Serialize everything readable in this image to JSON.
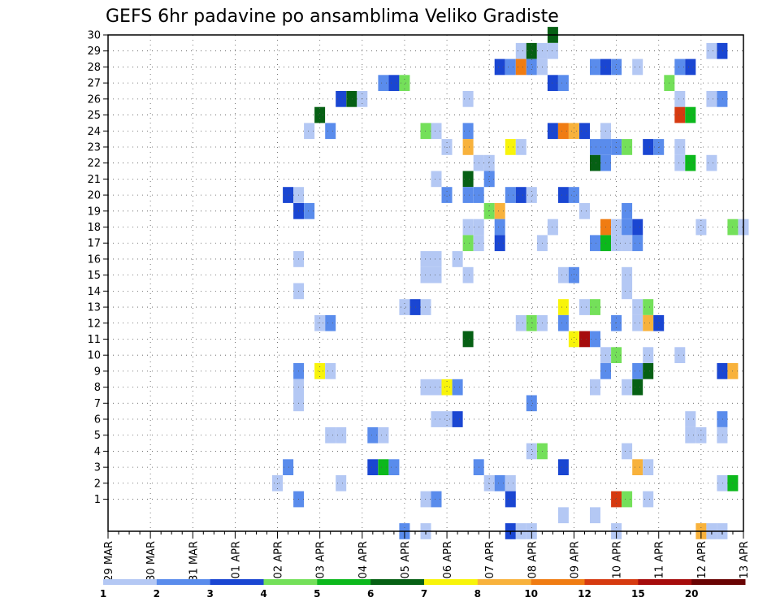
{
  "chart_data": {
    "type": "heatmap",
    "title": "GEFS 6hr padavine po ansamblima Veliko Gradiste",
    "x_tick_labels": [
      "29 MAR",
      "30 MAR",
      "31 MAR",
      "01 APR",
      "02 APR",
      "03 APR",
      "04 APR",
      "05 APR",
      "06 APR",
      "07 APR",
      "08 APR",
      "09 APR",
      "10 APR",
      "11 APR",
      "12 APR",
      "13 APR"
    ],
    "y_tick_labels": [
      "1",
      "2",
      "3",
      "4",
      "5",
      "6",
      "7",
      "8",
      "9",
      "10",
      "11",
      "12",
      "13",
      "14",
      "15",
      "16",
      "17",
      "18",
      "19",
      "20",
      "21",
      "22",
      "23",
      "24",
      "25",
      "26",
      "27",
      "28",
      "29",
      "30"
    ],
    "xlim": [
      0,
      60
    ],
    "ylim": [
      0,
      30
    ],
    "steps_per_day": 4,
    "grid": true,
    "legend_position": "bottom",
    "colorbar": {
      "levels": [
        "1",
        "2",
        "3",
        "4",
        "5",
        "6",
        "7",
        "8",
        "10",
        "12",
        "15",
        "20"
      ],
      "colors": [
        "#b4c8f4",
        "#5a8cec",
        "#1a46d2",
        "#74e05a",
        "#0cb81c",
        "#066014",
        "#f8f40a",
        "#f8b23c",
        "#f07c12",
        "#d63a10",
        "#a60c0c",
        "#6a0404"
      ]
    },
    "cells": [
      [
        39,
        29,
        0
      ],
      [
        40,
        29,
        5
      ],
      [
        41,
        29,
        0
      ],
      [
        42,
        29,
        0
      ],
      [
        42,
        30,
        5
      ],
      [
        57,
        29,
        0
      ],
      [
        58,
        29,
        2
      ],
      [
        37,
        28,
        2
      ],
      [
        38,
        28,
        1
      ],
      [
        39,
        28,
        8
      ],
      [
        40,
        28,
        1
      ],
      [
        41,
        28,
        0
      ],
      [
        46,
        28,
        1
      ],
      [
        47,
        28,
        2
      ],
      [
        48,
        28,
        1
      ],
      [
        50,
        28,
        0
      ],
      [
        54,
        28,
        1
      ],
      [
        55,
        28,
        2
      ],
      [
        26,
        27,
        1
      ],
      [
        27,
        27,
        2
      ],
      [
        28,
        27,
        3
      ],
      [
        42,
        27,
        2
      ],
      [
        43,
        27,
        1
      ],
      [
        53,
        27,
        3
      ],
      [
        22,
        26,
        2
      ],
      [
        23,
        26,
        5
      ],
      [
        24,
        26,
        0
      ],
      [
        34,
        26,
        0
      ],
      [
        54,
        26,
        0
      ],
      [
        57,
        26,
        0
      ],
      [
        58,
        26,
        1
      ],
      [
        20,
        25,
        5
      ],
      [
        54,
        25,
        9
      ],
      [
        55,
        25,
        4
      ],
      [
        19,
        24,
        0
      ],
      [
        21,
        24,
        1
      ],
      [
        30,
        24,
        3
      ],
      [
        31,
        24,
        0
      ],
      [
        34,
        24,
        1
      ],
      [
        42,
        24,
        2
      ],
      [
        43,
        24,
        8
      ],
      [
        44,
        24,
        7
      ],
      [
        45,
        24,
        2
      ],
      [
        47,
        24,
        0
      ],
      [
        32,
        23,
        0
      ],
      [
        34,
        23,
        7
      ],
      [
        38,
        23,
        6
      ],
      [
        39,
        23,
        0
      ],
      [
        46,
        23,
        1
      ],
      [
        47,
        23,
        1
      ],
      [
        48,
        23,
        1
      ],
      [
        49,
        23,
        3
      ],
      [
        51,
        23,
        2
      ],
      [
        52,
        23,
        1
      ],
      [
        54,
        23,
        0
      ],
      [
        35,
        22,
        0
      ],
      [
        36,
        22,
        0
      ],
      [
        46,
        22,
        5
      ],
      [
        47,
        22,
        1
      ],
      [
        54,
        22,
        0
      ],
      [
        55,
        22,
        4
      ],
      [
        57,
        22,
        0
      ],
      [
        31,
        21,
        0
      ],
      [
        34,
        21,
        5
      ],
      [
        36,
        21,
        1
      ],
      [
        17,
        20,
        2
      ],
      [
        18,
        20,
        0
      ],
      [
        32,
        20,
        1
      ],
      [
        34,
        20,
        1
      ],
      [
        35,
        20,
        1
      ],
      [
        38,
        20,
        1
      ],
      [
        39,
        20,
        2
      ],
      [
        40,
        20,
        0
      ],
      [
        43,
        20,
        2
      ],
      [
        44,
        20,
        1
      ],
      [
        18,
        19,
        2
      ],
      [
        19,
        19,
        1
      ],
      [
        36,
        19,
        3
      ],
      [
        37,
        19,
        7
      ],
      [
        45,
        19,
        0
      ],
      [
        49,
        19,
        1
      ],
      [
        34,
        18,
        0
      ],
      [
        35,
        18,
        0
      ],
      [
        37,
        18,
        1
      ],
      [
        42,
        18,
        0
      ],
      [
        47,
        18,
        8
      ],
      [
        48,
        18,
        0
      ],
      [
        49,
        18,
        1
      ],
      [
        50,
        18,
        2
      ],
      [
        56,
        18,
        0
      ],
      [
        59,
        18,
        3
      ],
      [
        60,
        18,
        0
      ],
      [
        34,
        17,
        3
      ],
      [
        35,
        17,
        0
      ],
      [
        37,
        17,
        2
      ],
      [
        41,
        17,
        0
      ],
      [
        46,
        17,
        1
      ],
      [
        47,
        17,
        4
      ],
      [
        48,
        17,
        0
      ],
      [
        49,
        17,
        0
      ],
      [
        50,
        17,
        1
      ],
      [
        18,
        16,
        0
      ],
      [
        30,
        16,
        0
      ],
      [
        31,
        16,
        0
      ],
      [
        33,
        16,
        0
      ],
      [
        30,
        15,
        0
      ],
      [
        31,
        15,
        0
      ],
      [
        34,
        15,
        0
      ],
      [
        43,
        15,
        0
      ],
      [
        44,
        15,
        1
      ],
      [
        49,
        15,
        0
      ],
      [
        18,
        14,
        0
      ],
      [
        49,
        14,
        0
      ],
      [
        28,
        13,
        0
      ],
      [
        29,
        13,
        2
      ],
      [
        30,
        13,
        0
      ],
      [
        43,
        13,
        6
      ],
      [
        45,
        13,
        0
      ],
      [
        46,
        13,
        3
      ],
      [
        50,
        13,
        0
      ],
      [
        51,
        13,
        3
      ],
      [
        20,
        12,
        0
      ],
      [
        21,
        12,
        1
      ],
      [
        39,
        12,
        0
      ],
      [
        40,
        12,
        3
      ],
      [
        41,
        12,
        0
      ],
      [
        43,
        12,
        1
      ],
      [
        48,
        12,
        1
      ],
      [
        50,
        12,
        0
      ],
      [
        51,
        12,
        7
      ],
      [
        52,
        12,
        2
      ],
      [
        34,
        11,
        5
      ],
      [
        44,
        11,
        6
      ],
      [
        45,
        11,
        10
      ],
      [
        46,
        11,
        1
      ],
      [
        47,
        10,
        0
      ],
      [
        48,
        10,
        3
      ],
      [
        51,
        10,
        0
      ],
      [
        54,
        10,
        0
      ],
      [
        18,
        9,
        1
      ],
      [
        20,
        9,
        6
      ],
      [
        21,
        9,
        0
      ],
      [
        47,
        9,
        1
      ],
      [
        50,
        9,
        1
      ],
      [
        51,
        9,
        5
      ],
      [
        58,
        9,
        2
      ],
      [
        59,
        9,
        7
      ],
      [
        18,
        8,
        0
      ],
      [
        30,
        8,
        0
      ],
      [
        31,
        8,
        0
      ],
      [
        32,
        8,
        6
      ],
      [
        33,
        8,
        1
      ],
      [
        46,
        8,
        0
      ],
      [
        49,
        8,
        0
      ],
      [
        50,
        8,
        5
      ],
      [
        18,
        7,
        0
      ],
      [
        40,
        7,
        1
      ],
      [
        31,
        6,
        0
      ],
      [
        32,
        6,
        0
      ],
      [
        33,
        6,
        2
      ],
      [
        55,
        6,
        0
      ],
      [
        58,
        6,
        1
      ],
      [
        21,
        5,
        0
      ],
      [
        22,
        5,
        0
      ],
      [
        25,
        5,
        1
      ],
      [
        26,
        5,
        0
      ],
      [
        55,
        5,
        0
      ],
      [
        56,
        5,
        0
      ],
      [
        58,
        5,
        0
      ],
      [
        40,
        4,
        0
      ],
      [
        41,
        4,
        3
      ],
      [
        49,
        4,
        0
      ],
      [
        17,
        3,
        1
      ],
      [
        25,
        3,
        2
      ],
      [
        26,
        3,
        4
      ],
      [
        27,
        3,
        1
      ],
      [
        35,
        3,
        1
      ],
      [
        43,
        3,
        2
      ],
      [
        50,
        3,
        7
      ],
      [
        51,
        3,
        0
      ],
      [
        16,
        2,
        0
      ],
      [
        22,
        2,
        0
      ],
      [
        36,
        2,
        0
      ],
      [
        37,
        2,
        1
      ],
      [
        38,
        2,
        0
      ],
      [
        58,
        2,
        0
      ],
      [
        59,
        2,
        4
      ],
      [
        18,
        1,
        1
      ],
      [
        30,
        1,
        0
      ],
      [
        31,
        1,
        1
      ],
      [
        38,
        1,
        2
      ],
      [
        48,
        1,
        9
      ],
      [
        49,
        1,
        3
      ],
      [
        51,
        1,
        0
      ],
      [
        43,
        0,
        0
      ],
      [
        46,
        0,
        0
      ],
      [
        28,
        -1,
        1
      ],
      [
        30,
        -1,
        0
      ],
      [
        38,
        -1,
        2
      ],
      [
        39,
        -1,
        0
      ],
      [
        40,
        -1,
        0
      ],
      [
        48,
        -1,
        0
      ],
      [
        56,
        -1,
        7
      ],
      [
        57,
        -1,
        0
      ],
      [
        58,
        -1,
        0
      ]
    ]
  }
}
